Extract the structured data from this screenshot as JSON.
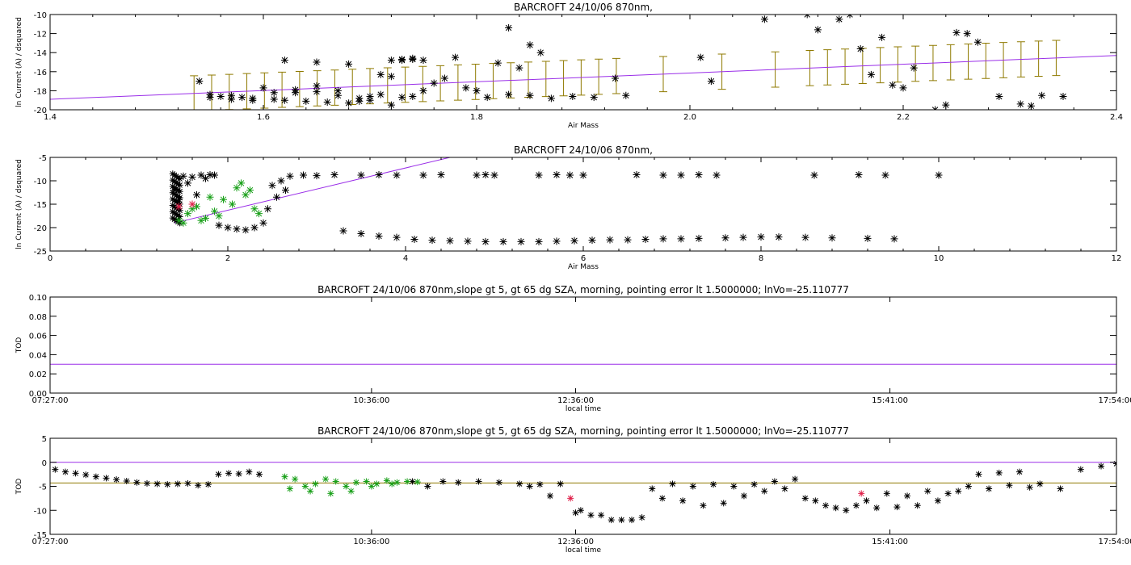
{
  "colors": {
    "fit": "#9a2ee8",
    "errorbar": "#8f7a00",
    "green": "#1aa01a",
    "red": "#e0204a",
    "black": "#000000",
    "hline": "#8f7a00"
  },
  "chart_data": [
    {
      "type": "scatter",
      "title": "BARCROFT 24/10/06 870nm,",
      "xlabel": "Air Mass",
      "ylabel": "ln Current (A) / dsquared",
      "xlim": [
        1.4,
        2.4
      ],
      "ylim": [
        -20,
        -10
      ],
      "xticks": [
        1.4,
        1.6,
        1.8,
        2.0,
        2.2,
        2.4
      ],
      "xtick_labels": [
        "1.4",
        "1.6",
        "1.8",
        "2.0",
        "2.2",
        "2.4"
      ],
      "yticks": [
        -20,
        -18,
        -16,
        -14,
        -12,
        -10
      ],
      "ytick_labels": [
        "-20",
        "-18",
        "-16",
        "-14",
        "-12",
        "-10"
      ],
      "fit_line": {
        "x": [
          1.4,
          2.4
        ],
        "y": [
          -18.9,
          -14.3
        ]
      },
      "errorbars": {
        "x_start": 1.535,
        "x_end": 2.35,
        "step": 0.0165,
        "gap": [
          1.94,
          2.11
        ],
        "extra_x": [
          1.975,
          2.03,
          2.08
        ],
        "halfwidth": 1.85
      },
      "points": {
        "x": [
          1.54,
          1.55,
          1.56,
          1.57,
          1.58,
          1.59,
          1.6,
          1.61,
          1.62,
          1.63,
          1.64,
          1.65,
          1.66,
          1.67,
          1.68,
          1.69,
          1.7,
          1.71,
          1.72,
          1.73,
          1.74,
          1.55,
          1.57,
          1.59,
          1.61,
          1.63,
          1.65,
          1.67,
          1.69,
          1.71,
          1.73,
          1.75,
          1.77,
          1.79,
          1.81,
          1.83,
          1.85,
          1.87,
          1.89,
          1.91,
          1.93,
          1.94,
          1.62,
          1.65,
          1.68,
          1.7,
          1.72,
          1.74,
          1.76,
          1.78,
          1.8,
          1.82,
          1.84,
          1.86,
          1.83,
          1.85,
          1.72,
          1.73,
          1.74,
          1.75,
          2.01,
          2.02,
          2.07,
          2.11,
          2.12,
          2.14,
          2.15,
          2.16,
          2.17,
          2.18,
          2.19,
          2.2,
          2.21,
          2.23,
          2.24,
          2.25,
          2.26,
          2.27,
          2.29,
          2.31,
          2.32,
          2.33,
          2.35
        ],
        "y": [
          -17.0,
          -18.7,
          -18.6,
          -18.9,
          -18.7,
          -19.0,
          -17.7,
          -18.2,
          -19.0,
          -17.9,
          -19.1,
          -18.1,
          -19.2,
          -18.5,
          -19.3,
          -18.8,
          -19.0,
          -18.4,
          -19.5,
          -18.7,
          -18.6,
          -18.4,
          -18.5,
          -18.8,
          -18.9,
          -18.2,
          -17.5,
          -18.0,
          -19.1,
          -16.3,
          -14.8,
          -18.0,
          -16.7,
          -17.7,
          -18.7,
          -18.4,
          -18.5,
          -18.8,
          -18.6,
          -18.7,
          -16.7,
          -18.5,
          -14.8,
          -15.0,
          -15.2,
          -18.6,
          -16.5,
          -14.7,
          -17.2,
          -14.5,
          -18.0,
          -15.1,
          -15.6,
          -14.0,
          -11.4,
          -13.2,
          -14.8,
          -14.7,
          -14.6,
          -14.8,
          -14.5,
          -17.0,
          -10.5,
          -10.0,
          -11.6,
          -10.5,
          -10.0,
          -13.6,
          -16.3,
          -12.4,
          -17.4,
          -17.7,
          -15.6,
          -20.0,
          -19.5,
          -11.9,
          -12.0,
          -12.9,
          -18.6,
          -19.4,
          -19.6,
          -18.5,
          -18.6
        ]
      }
    },
    {
      "type": "scatter",
      "title": "BARCROFT 24/10/06 870nm,",
      "xlabel": "Air Mass",
      "ylabel": "ln Current (A) / dsquared",
      "xlim": [
        0,
        12
      ],
      "ylim": [
        -25,
        -5
      ],
      "xticks": [
        0,
        2,
        4,
        6,
        8,
        10,
        12
      ],
      "xtick_labels": [
        "0",
        "2",
        "4",
        "6",
        "8",
        "10",
        "12"
      ],
      "yticks": [
        -25,
        -20,
        -15,
        -10,
        -5
      ],
      "ytick_labels": [
        "-25",
        "-20",
        "-15",
        "-10",
        "-5"
      ],
      "fit_line": {
        "x": [
          1.4,
          4.5
        ],
        "y": [
          -19.0,
          -5.0
        ]
      },
      "series_black": {
        "x": [
          2.7,
          2.85,
          3.0,
          3.2,
          3.5,
          3.7,
          3.9,
          4.2,
          4.4,
          4.8,
          4.9,
          5.0,
          5.5,
          5.7,
          5.85,
          6.0,
          6.6,
          6.9,
          7.1,
          7.3,
          7.5,
          8.6,
          9.1,
          9.4,
          10.0,
          2.5,
          2.6,
          2.65,
          2.55,
          2.45,
          1.5,
          1.6,
          1.7,
          1.8,
          1.4,
          1.45,
          1.55,
          1.65,
          1.75,
          1.85
        ],
        "y": [
          -9.0,
          -8.8,
          -8.9,
          -8.7,
          -8.8,
          -8.7,
          -8.8,
          -8.8,
          -8.7,
          -8.8,
          -8.7,
          -8.8,
          -8.8,
          -8.7,
          -8.8,
          -8.8,
          -8.7,
          -8.8,
          -8.8,
          -8.7,
          -8.8,
          -8.8,
          -8.7,
          -8.8,
          -8.8,
          -11.0,
          -10.0,
          -12.0,
          -13.5,
          -16.0,
          -9.0,
          -9.2,
          -8.8,
          -8.7,
          -12.0,
          -14.0,
          -10.5,
          -13.0,
          -9.5,
          -8.8
        ]
      },
      "series_black_lower": {
        "x": [
          3.3,
          3.5,
          3.7,
          3.9,
          4.1,
          4.3,
          4.5,
          4.7,
          4.9,
          5.1,
          5.3,
          5.5,
          5.7,
          5.9,
          6.1,
          6.3,
          6.5,
          6.7,
          6.9,
          7.1,
          7.3,
          7.6,
          7.8,
          8.0,
          8.2,
          8.5,
          8.8,
          9.2,
          9.5,
          1.9,
          2.0,
          2.1,
          2.2,
          2.3,
          2.4
        ],
        "y": [
          -20.7,
          -21.3,
          -21.8,
          -22.1,
          -22.5,
          -22.7,
          -22.8,
          -22.9,
          -23.0,
          -23.0,
          -23.0,
          -23.0,
          -22.9,
          -22.8,
          -22.7,
          -22.6,
          -22.6,
          -22.5,
          -22.4,
          -22.4,
          -22.3,
          -22.2,
          -22.1,
          -22.0,
          -22.0,
          -22.1,
          -22.2,
          -22.3,
          -22.4,
          -19.5,
          -20.0,
          -20.3,
          -20.5,
          -20.0,
          -19.0
        ]
      },
      "series_green": {
        "x": [
          1.45,
          1.55,
          1.65,
          1.75,
          1.85,
          1.95,
          2.05,
          2.15,
          2.25,
          2.35,
          1.5,
          1.6,
          1.7,
          1.8,
          1.9,
          2.1,
          2.2,
          2.3
        ],
        "y": [
          -18.5,
          -17.0,
          -15.5,
          -18.0,
          -16.5,
          -14.0,
          -15.0,
          -10.5,
          -12.0,
          -17.0,
          -19.0,
          -16.0,
          -18.5,
          -13.5,
          -17.5,
          -11.5,
          -13.0,
          -16.0
        ]
      },
      "series_red": {
        "x": [
          1.45,
          1.6
        ],
        "y": [
          -15.5,
          -15.0
        ]
      }
    },
    {
      "type": "line",
      "title": "BARCROFT 24/10/06 870nm,slope gt 5, gt 65 dg SZA, morning, pointing error lt 1.5000000; lnVo=-25.110777",
      "xlabel": "local time",
      "ylabel": "TOD",
      "xlim": [
        0,
        10.45
      ],
      "ylim": [
        0.0,
        0.1
      ],
      "xticks": [
        0,
        3.15,
        5.15,
        8.23,
        10.45
      ],
      "xtick_labels": [
        "07:27:00",
        "10:36:00",
        "12:36:00",
        "15:41:00",
        "17:54:00"
      ],
      "yticks": [
        0.0,
        0.02,
        0.04,
        0.06,
        0.08,
        0.1
      ],
      "ytick_labels": [
        "0.00",
        "0.02",
        "0.04",
        "0.06",
        "0.08",
        "0.10"
      ],
      "hline": 0.03
    },
    {
      "type": "scatter",
      "title": "BARCROFT 24/10/06 870nm,slope gt 5, gt 65 dg SZA, morning, pointing error lt 1.5000000; lnVo=-25.110777",
      "xlabel": "local time",
      "ylabel": "TOD",
      "xlim": [
        0,
        10.45
      ],
      "ylim": [
        -15,
        5
      ],
      "xticks": [
        0,
        3.15,
        5.15,
        8.23,
        10.45
      ],
      "xtick_labels": [
        "07:27:00",
        "10:36:00",
        "12:36:00",
        "15:41:00",
        "17:54:00"
      ],
      "yticks": [
        -15,
        -10,
        -5,
        0,
        5
      ],
      "ytick_labels": [
        "-15",
        "-10",
        "-5",
        "0",
        "5"
      ],
      "hline_fit": 0,
      "hline_mean": -4.3,
      "series_black": {
        "x": [
          0.05,
          0.15,
          0.25,
          0.35,
          0.45,
          0.55,
          0.65,
          0.75,
          0.85,
          0.95,
          1.05,
          1.15,
          1.25,
          1.35,
          1.45,
          1.55,
          1.65,
          1.75,
          1.85,
          1.95,
          2.05,
          3.55,
          3.7,
          3.85,
          4.0,
          4.2,
          4.4,
          4.6,
          4.8,
          5.0,
          5.15,
          5.3,
          5.5,
          5.7,
          5.9,
          6.1,
          6.3,
          6.5,
          6.7,
          6.9,
          7.1,
          7.3,
          7.5,
          7.7,
          7.9,
          8.1,
          8.3,
          8.5,
          8.7,
          8.9,
          9.1,
          9.3,
          9.5,
          9.7,
          9.9,
          10.1,
          10.3,
          10.45,
          4.7,
          4.9,
          5.2,
          5.4,
          5.6,
          5.8,
          6.0,
          6.2,
          6.4,
          6.6,
          6.8,
          7.0,
          7.2,
          7.4,
          7.6,
          7.8,
          8.0,
          8.2,
          8.4,
          8.6,
          8.8,
          9.0,
          9.2,
          9.4,
          9.6
        ],
        "y": [
          -1.5,
          -2.0,
          -2.3,
          -2.6,
          -3.0,
          -3.3,
          -3.6,
          -3.9,
          -4.2,
          -4.4,
          -4.5,
          -4.6,
          -4.5,
          -4.4,
          -4.8,
          -4.6,
          -2.5,
          -2.3,
          -2.4,
          -2.0,
          -2.5,
          -4.0,
          -5.0,
          -4.0,
          -4.2,
          -4.0,
          -4.2,
          -4.5,
          -4.6,
          -4.5,
          -10.5,
          -11.0,
          -12.0,
          -12.0,
          -5.5,
          -4.5,
          -5.0,
          -4.6,
          -5.0,
          -4.6,
          -4.0,
          -3.5,
          -8.0,
          -9.5,
          -9.0,
          -9.5,
          -9.3,
          -9.0,
          -8.0,
          -6.0,
          -2.5,
          -2.2,
          -2.0,
          -4.5,
          -5.5,
          -1.5,
          -0.8,
          -0.3,
          -5.0,
          -7.0,
          -10.0,
          -11.0,
          -12.0,
          -11.5,
          -7.5,
          -8.0,
          -9.0,
          -8.5,
          -7.0,
          -6.0,
          -5.5,
          -7.5,
          -9.0,
          -10.0,
          -8.0,
          -6.5,
          -7.0,
          -6.0,
          -6.5,
          -5.0,
          -5.5,
          -4.8,
          -5.2
        ]
      },
      "series_green": {
        "x": [
          2.3,
          2.4,
          2.5,
          2.6,
          2.7,
          2.8,
          2.9,
          3.0,
          3.1,
          3.2,
          3.3,
          3.4,
          3.5,
          3.6,
          2.35,
          2.55,
          2.75,
          2.95,
          3.15,
          3.35
        ],
        "y": [
          -3.0,
          -3.5,
          -5.0,
          -4.5,
          -3.5,
          -4.0,
          -5.0,
          -4.2,
          -4.0,
          -4.5,
          -3.8,
          -4.2,
          -4.0,
          -4.1,
          -5.5,
          -6.0,
          -6.5,
          -6.0,
          -5.0,
          -4.5
        ]
      },
      "series_red": {
        "x": [
          5.1,
          7.95
        ],
        "y": [
          -7.5,
          -6.5
        ]
      }
    }
  ]
}
